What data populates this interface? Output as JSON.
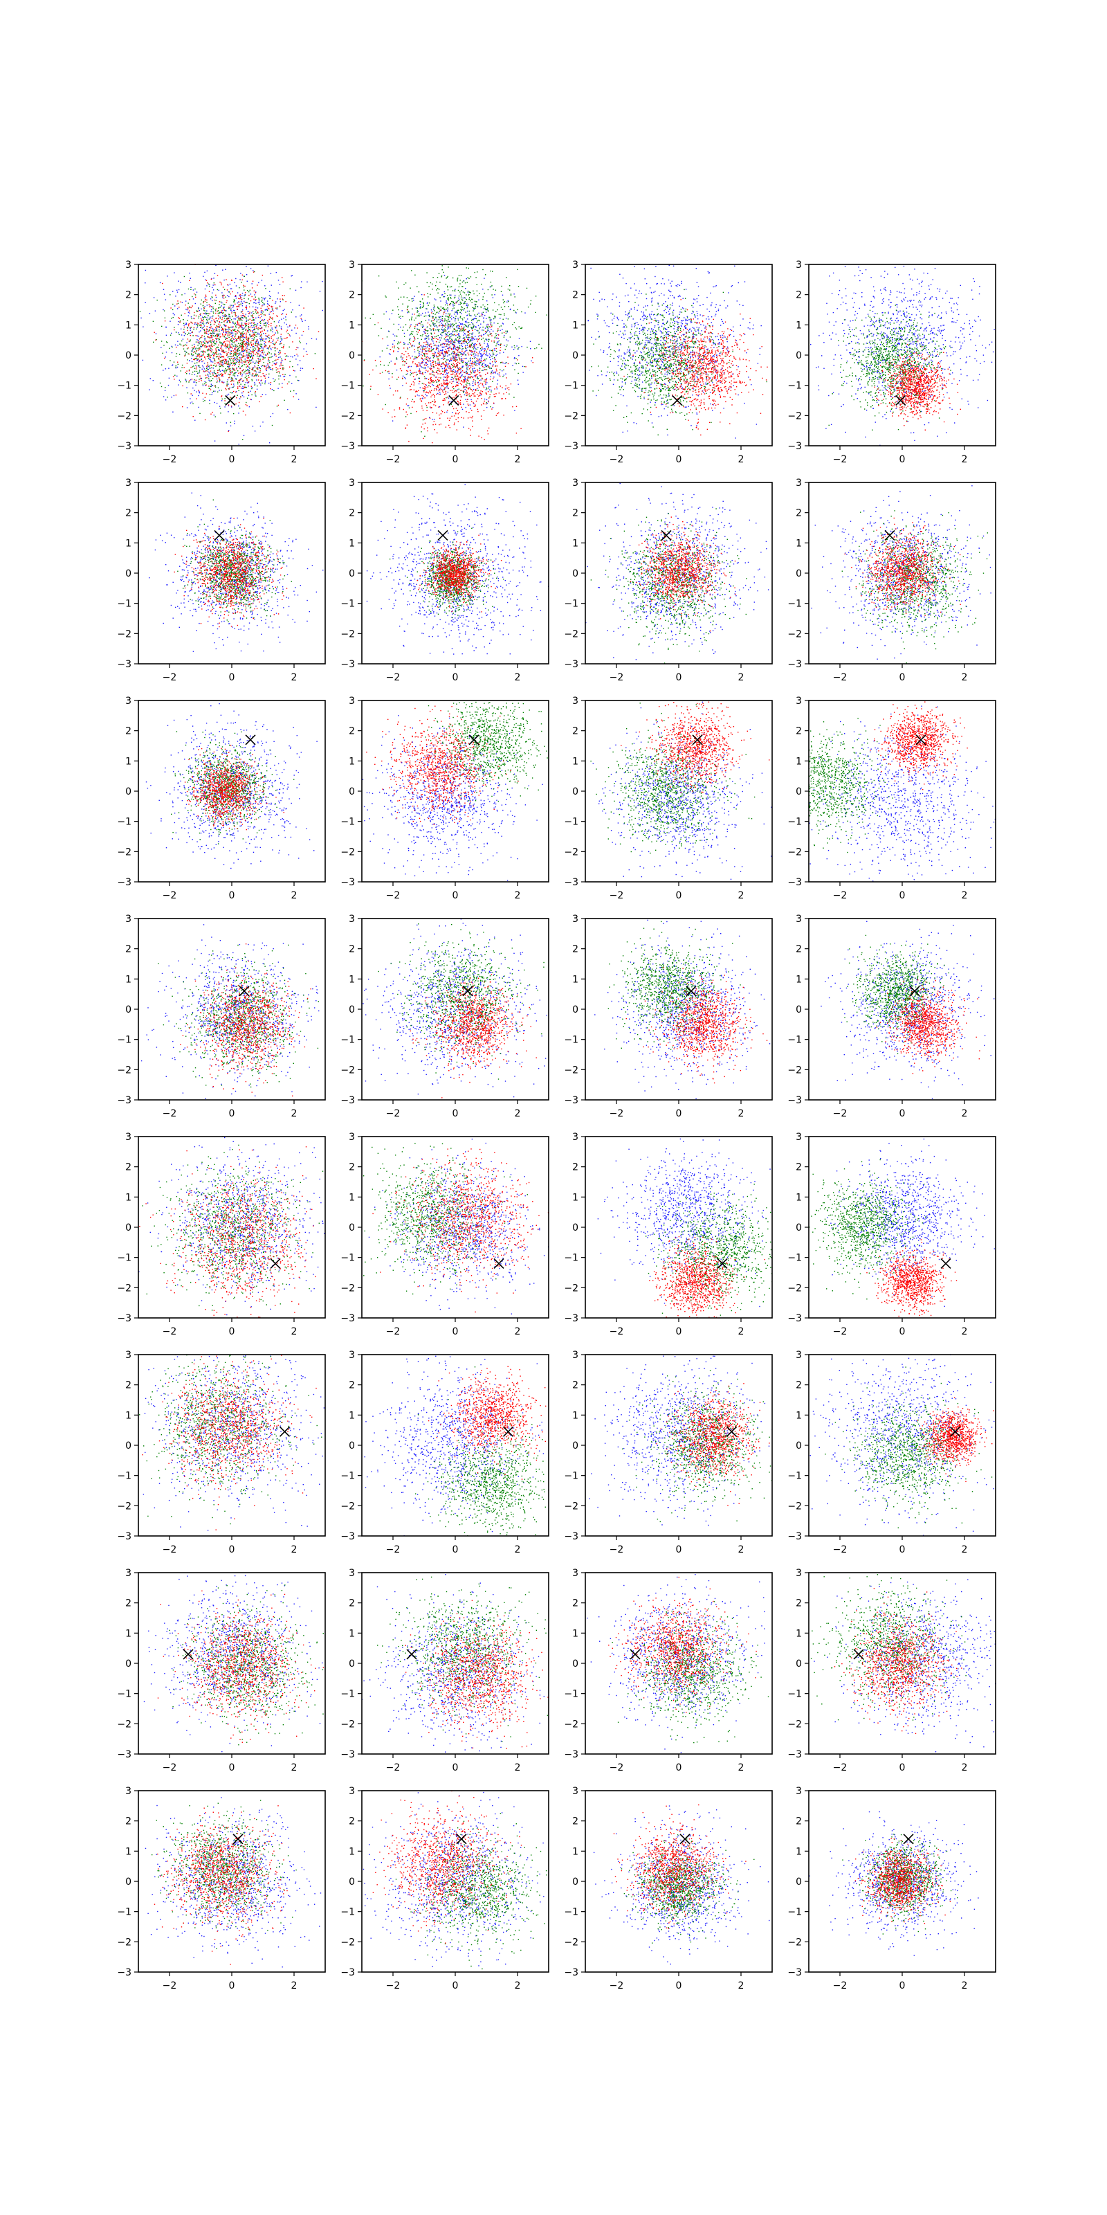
{
  "figure": {
    "rows": 8,
    "cols": 4,
    "colors": {
      "blue": "#1f1fff",
      "green": "#008000",
      "red": "#ff0000",
      "marker": "#000000"
    }
  },
  "axes_common": {
    "xlim": [
      -3,
      3
    ],
    "ylim": [
      -3,
      3
    ],
    "xticks": [
      -2,
      0,
      2
    ],
    "yticks": [
      -3,
      -2,
      -1,
      0,
      1,
      2,
      3
    ],
    "xtick_labels": [
      "−2",
      "0",
      "2"
    ],
    "ytick_labels": [
      "−3",
      "−2",
      "−1",
      "0",
      "1",
      "2",
      "3"
    ]
  },
  "chart_data": {
    "type": "scatter",
    "layout": "8x4 grid of panels",
    "series_colors": [
      "blue",
      "green",
      "red"
    ],
    "marker": "x",
    "rows": [
      {
        "marker_xy": [
          -0.05,
          -1.5
        ],
        "panels": [
          {
            "blue": [
              0,
              0.5,
              1.2
            ],
            "green": [
              -0.1,
              0.3,
              0.9
            ],
            "red": [
              0.1,
              0.4,
              0.9
            ]
          },
          {
            "blue": [
              0,
              0.2,
              0.9
            ],
            "green": [
              0,
              1.0,
              1.1
            ],
            "red": [
              -0.2,
              -0.6,
              0.9
            ]
          },
          {
            "blue": [
              -0.3,
              0.5,
              1.1
            ],
            "green": [
              -0.5,
              -0.2,
              0.8
            ],
            "red": [
              0.8,
              -0.4,
              0.7
            ]
          },
          {
            "blue": [
              0,
              0.5,
              1.2
            ],
            "green": [
              -0.3,
              -0.2,
              0.7
            ],
            "red": [
              0.4,
              -1.0,
              0.45
            ]
          }
        ]
      },
      {
        "marker_xy": [
          -0.4,
          1.25
        ],
        "panels": [
          {
            "blue": [
              0,
              0,
              0.9
            ],
            "green": [
              0,
              0,
              0.6
            ],
            "red": [
              0,
              0,
              0.6
            ]
          },
          {
            "blue": [
              0,
              0,
              1.1
            ],
            "green": [
              -0.1,
              -0.2,
              0.45
            ],
            "red": [
              0,
              0,
              0.4
            ]
          },
          {
            "blue": [
              0,
              0,
              1.1
            ],
            "green": [
              -0.2,
              -0.3,
              0.8
            ],
            "red": [
              0,
              0.1,
              0.55
            ]
          },
          {
            "blue": [
              0,
              0,
              1.0
            ],
            "green": [
              0.4,
              -0.2,
              0.8
            ],
            "red": [
              0,
              0.1,
              0.55
            ]
          }
        ]
      },
      {
        "marker_xy": [
          0.6,
          1.7
        ],
        "panels": [
          {
            "blue": [
              0,
              0,
              1.0
            ],
            "green": [
              -0.2,
              0.2,
              0.6
            ],
            "red": [
              -0.2,
              0,
              0.5
            ]
          },
          {
            "blue": [
              -0.3,
              -0.3,
              1.0
            ],
            "green": [
              1.0,
              1.6,
              0.75
            ],
            "red": [
              -0.5,
              0.8,
              0.7
            ]
          },
          {
            "blue": [
              0,
              -0.2,
              1.0
            ],
            "green": [
              -0.4,
              0,
              0.8
            ],
            "red": [
              0.5,
              1.5,
              0.6
            ]
          },
          {
            "blue": [
              0,
              -0.3,
              1.2
            ],
            "green": [
              -2.5,
              0.3,
              0.75
            ],
            "red": [
              0.5,
              1.7,
              0.5
            ]
          }
        ]
      },
      {
        "marker_xy": [
          0.4,
          0.6
        ],
        "panels": [
          {
            "blue": [
              0.2,
              -0.1,
              1.0
            ],
            "green": [
              0.3,
              -0.3,
              0.8
            ],
            "red": [
              0.5,
              -0.5,
              0.7
            ]
          },
          {
            "blue": [
              0,
              0,
              1.1
            ],
            "green": [
              0.2,
              0.5,
              0.8
            ],
            "red": [
              0.6,
              -0.5,
              0.6
            ]
          },
          {
            "blue": [
              0.3,
              0,
              1.0
            ],
            "green": [
              -0.3,
              0.7,
              0.7
            ],
            "red": [
              0.8,
              -0.5,
              0.6
            ]
          },
          {
            "blue": [
              0.2,
              0.1,
              1.0
            ],
            "green": [
              -0.2,
              0.6,
              0.6
            ],
            "red": [
              0.7,
              -0.5,
              0.5
            ]
          }
        ]
      },
      {
        "marker_xy": [
          1.4,
          -1.2
        ],
        "panels": [
          {
            "blue": [
              0.3,
              0.2,
              1.1
            ],
            "green": [
              0,
              -0.1,
              1.0
            ],
            "red": [
              0.3,
              -0.4,
              1.0
            ]
          },
          {
            "blue": [
              0.2,
              0,
              1.0
            ],
            "green": [
              -0.8,
              0.4,
              0.9
            ],
            "red": [
              0.5,
              0.3,
              0.9
            ]
          },
          {
            "blue": [
              0.3,
              0.5,
              1.0
            ],
            "green": [
              1.3,
              -0.8,
              0.8
            ],
            "red": [
              0.5,
              -1.8,
              0.55
            ]
          },
          {
            "blue": [
              0.1,
              0.3,
              0.9
            ],
            "green": [
              -1.3,
              0.1,
              0.7
            ],
            "red": [
              0.3,
              -1.8,
              0.45
            ]
          }
        ]
      },
      {
        "marker_xy": [
          1.7,
          0.45
        ],
        "panels": [
          {
            "blue": [
              0,
              0.6,
              1.2
            ],
            "green": [
              -0.5,
              0.7,
              1.0
            ],
            "red": [
              -0.1,
              0.6,
              0.9
            ]
          },
          {
            "blue": [
              0,
              0.2,
              1.1
            ],
            "green": [
              1.2,
              -1.2,
              0.8
            ],
            "red": [
              1.2,
              1.0,
              0.6
            ]
          },
          {
            "blue": [
              0,
              0.4,
              1.1
            ],
            "green": [
              0.8,
              0,
              0.8
            ],
            "red": [
              1.1,
              0.3,
              0.6
            ]
          },
          {
            "blue": [
              0,
              0.5,
              1.2
            ],
            "green": [
              0.2,
              -0.3,
              0.8
            ],
            "red": [
              1.6,
              0.3,
              0.4
            ]
          }
        ]
      },
      {
        "marker_xy": [
          -1.4,
          0.3
        ],
        "panels": [
          {
            "blue": [
              0.1,
              0.3,
              1.1
            ],
            "green": [
              0.5,
              -0.1,
              0.9
            ],
            "red": [
              0.3,
              -0.1,
              0.8
            ]
          },
          {
            "blue": [
              0,
              -0.3,
              1.1
            ],
            "green": [
              0.3,
              0.5,
              0.9
            ],
            "red": [
              0.8,
              -0.4,
              0.8
            ]
          },
          {
            "blue": [
              0.1,
              0.2,
              1.0
            ],
            "green": [
              0.4,
              -0.3,
              0.8
            ],
            "red": [
              -0.1,
              0.5,
              0.7
            ]
          },
          {
            "blue": [
              0.6,
              0.1,
              1.1
            ],
            "green": [
              -0.4,
              0.6,
              0.9
            ],
            "red": [
              -0.1,
              -0.1,
              0.7
            ]
          }
        ]
      },
      {
        "marker_xy": [
          0.2,
          1.4
        ],
        "panels": [
          {
            "blue": [
              0,
              0,
              1.0
            ],
            "green": [
              -0.3,
              0.4,
              0.8
            ],
            "red": [
              -0.3,
              0.2,
              0.8
            ]
          },
          {
            "blue": [
              0,
              0,
              1.1
            ],
            "green": [
              0.7,
              -0.3,
              0.8
            ],
            "red": [
              -0.4,
              0.6,
              0.8
            ]
          },
          {
            "blue": [
              0,
              -0.1,
              0.9
            ],
            "green": [
              0,
              -0.2,
              0.6
            ],
            "red": [
              -0.2,
              0.4,
              0.65
            ]
          },
          {
            "blue": [
              0,
              0,
              0.85
            ],
            "green": [
              0,
              0.1,
              0.55
            ],
            "red": [
              -0.1,
              0,
              0.5
            ]
          }
        ]
      }
    ]
  }
}
